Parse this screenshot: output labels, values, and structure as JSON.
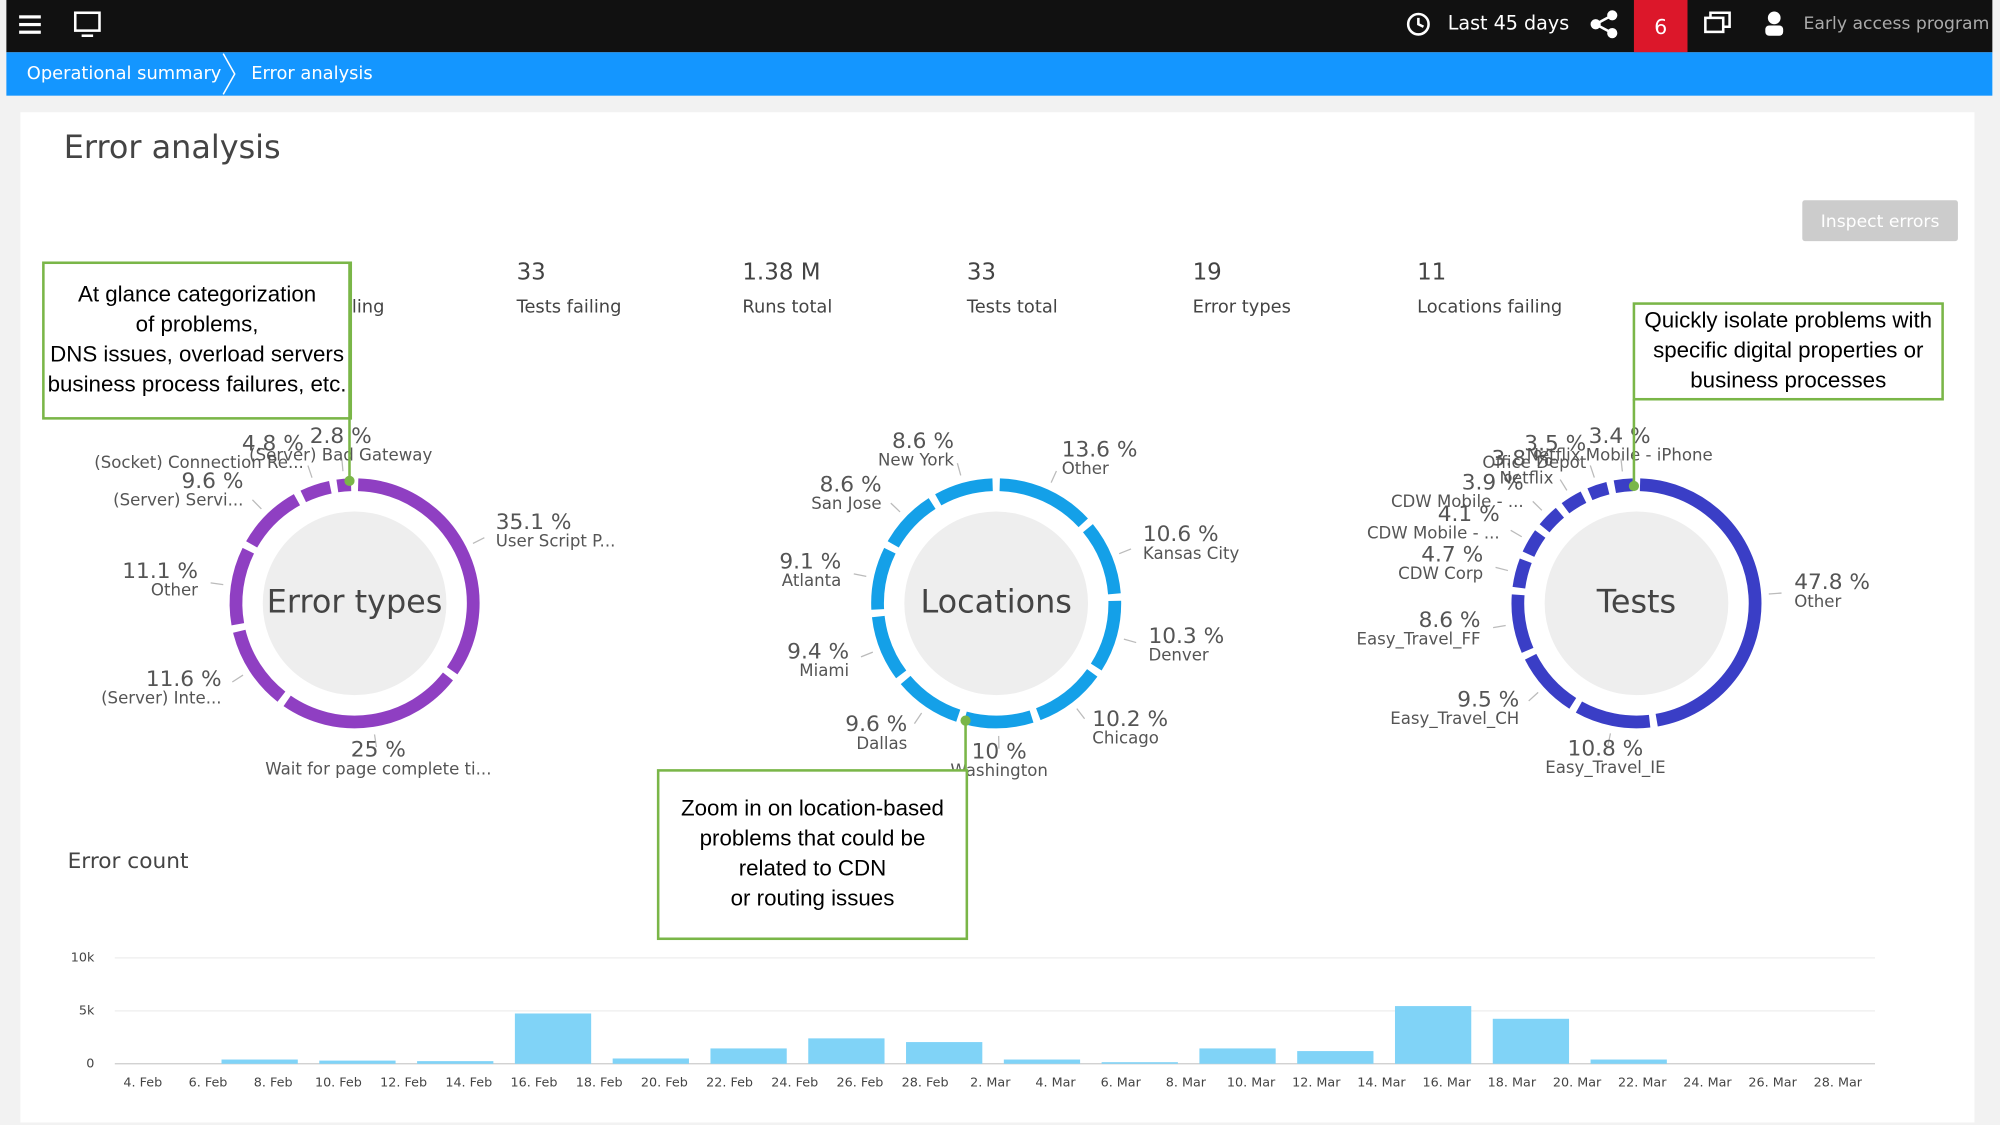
{
  "header": {
    "time_range": "Last 45 days",
    "notifications": "6",
    "account": "Early access program"
  },
  "breadcrumbs": [
    "Operational summary",
    "Error analysis"
  ],
  "page_title": "Error analysis",
  "button": "Inspect errors",
  "kpis": [
    {
      "label": "iling"
    },
    {
      "value": "33",
      "label": "Tests failing"
    },
    {
      "value": "1.38 M",
      "label": "Runs total"
    },
    {
      "value": "33",
      "label": "Tests total"
    },
    {
      "value": "19",
      "label": "Error types"
    },
    {
      "value": "11",
      "label": "Locations failing"
    }
  ],
  "donuts": [
    {
      "type": "pie",
      "title": "Error types",
      "color": "#8f3fc2",
      "segments": [
        {
          "value": 35.1,
          "value_label": "35.1 %",
          "label": "User Script P..."
        },
        {
          "value": 25,
          "value_label": "25 %",
          "label": "Wait for page complete ti..."
        },
        {
          "value": 11.6,
          "value_label": "11.6 %",
          "label": "(Server) Inte..."
        },
        {
          "value": 11.1,
          "value_label": "11.1 %",
          "label": "Other"
        },
        {
          "value": 9.6,
          "value_label": "9.6 %",
          "label": "(Server) Servi..."
        },
        {
          "value": 4.8,
          "value_label": "4.8 %",
          "label": "(Socket) Connection Re..."
        },
        {
          "value": 2.8,
          "value_label": "2.8 %",
          "label": "(Server) Bad Gateway"
        }
      ]
    },
    {
      "type": "pie",
      "title": "Locations",
      "color": "#14a0e8",
      "segments": [
        {
          "value": 13.6,
          "value_label": "13.6 %",
          "label": "Other"
        },
        {
          "value": 10.6,
          "value_label": "10.6 %",
          "label": "Kansas City"
        },
        {
          "value": 10.3,
          "value_label": "10.3 %",
          "label": "Denver"
        },
        {
          "value": 10.2,
          "value_label": "10.2 %",
          "label": "Chicago"
        },
        {
          "value": 10,
          "value_label": "10 %",
          "label": "Washington"
        },
        {
          "value": 9.6,
          "value_label": "9.6 %",
          "label": "Dallas"
        },
        {
          "value": 9.4,
          "value_label": "9.4 %",
          "label": "Miami"
        },
        {
          "value": 9.1,
          "value_label": "9.1 %",
          "label": "Atlanta"
        },
        {
          "value": 8.6,
          "value_label": "8.6 %",
          "label": "San Jose"
        },
        {
          "value": 8.6,
          "value_label": "8.6 %",
          "label": "New York"
        }
      ]
    },
    {
      "type": "pie",
      "title": "Tests",
      "color": "#3a3ec6",
      "segments": [
        {
          "value": 47.8,
          "value_label": "47.8 %",
          "label": "Other"
        },
        {
          "value": 10.8,
          "value_label": "10.8 %",
          "label": "Easy_Travel_IE"
        },
        {
          "value": 9.5,
          "value_label": "9.5 %",
          "label": "Easy_Travel_CH"
        },
        {
          "value": 8.6,
          "value_label": "8.6 %",
          "label": "Easy_Travel_FF"
        },
        {
          "value": 4.7,
          "value_label": "4.7 %",
          "label": "CDW Corp"
        },
        {
          "value": 4.1,
          "value_label": "4.1 %",
          "label": "CDW Mobile - ..."
        },
        {
          "value": 3.9,
          "value_label": "3.9 %",
          "label": "CDW Mobile - ..."
        },
        {
          "value": 3.8,
          "value_label": "3.8 %",
          "label": "Netflix"
        },
        {
          "value": 3.5,
          "value_label": "3.5 %",
          "label": "Office Depot"
        },
        {
          "value": 3.4,
          "value_label": "3.4 %",
          "label": "Netflix Mobile - iPhone"
        }
      ]
    }
  ],
  "chart_data": {
    "type": "bar",
    "title": "Error count",
    "color": "#80d3f7",
    "xtick_labels": [
      "4. Feb",
      "6. Feb",
      "8. Feb",
      "10. Feb",
      "12. Feb",
      "14. Feb",
      "16. Feb",
      "18. Feb",
      "20. Feb",
      "22. Feb",
      "24. Feb",
      "26. Feb",
      "28. Feb",
      "2. Mar",
      "4. Mar",
      "6. Mar",
      "8. Mar",
      "10. Mar",
      "12. Mar",
      "14. Mar",
      "16. Mar",
      "18. Mar",
      "20. Mar",
      "22. Mar",
      "24. Mar",
      "26. Mar",
      "28. Mar"
    ],
    "values": [
      0,
      400,
      300,
      250,
      4750,
      500,
      1450,
      2400,
      2050,
      400,
      150,
      1450,
      1200,
      5450,
      4250,
      400,
      0,
      0
    ],
    "ylim": [
      0,
      10000
    ],
    "yticks": [
      0,
      {
        "value": 5000,
        "label": "5k"
      },
      {
        "value": 10000,
        "label": "10k"
      }
    ],
    "grid": true
  },
  "callouts": [
    {
      "lines": [
        "At glance categorization",
        "of problems,",
        "DNS issues, overload servers",
        "business process failures, etc."
      ]
    },
    {
      "lines": [
        "Zoom in on location-based",
        "problems that could be",
        "related to CDN",
        "or routing issues"
      ]
    },
    {
      "lines": [
        "Quickly isolate problems with",
        "specific digital properties or",
        "business processes"
      ]
    }
  ]
}
